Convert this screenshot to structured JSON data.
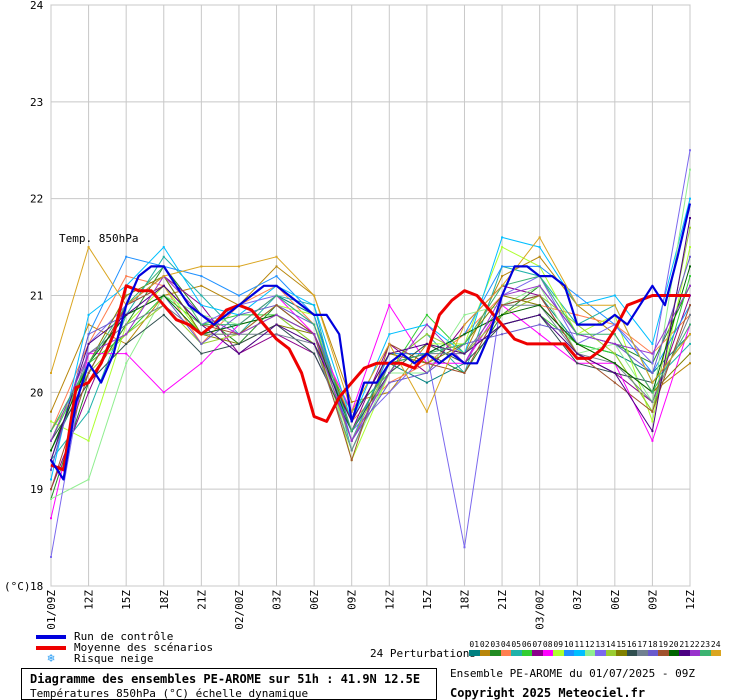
{
  "chart_data": {
    "type": "line",
    "in_chart_label": "Temp. 850hPa",
    "unit_label": "(°C)",
    "ylim": [
      18,
      24
    ],
    "y_ticks": [
      "18",
      "19",
      "20",
      "21",
      "22",
      "23",
      "24"
    ],
    "x_tick_labels": [
      "01/09Z",
      "12Z",
      "15Z",
      "18Z",
      "21Z",
      "02/00Z",
      "03Z",
      "06Z",
      "09Z",
      "12Z",
      "15Z",
      "18Z",
      "21Z",
      "03/00Z",
      "03Z",
      "06Z",
      "09Z",
      "12Z"
    ],
    "x_hours": [
      0,
      3,
      6,
      9,
      12,
      15,
      18,
      21,
      24,
      27,
      30,
      33,
      36,
      39,
      42,
      45,
      48,
      51
    ],
    "xlim": [
      0,
      51
    ],
    "grid": true,
    "control_run": {
      "name": "Run de contrôle",
      "color": "#0000dd",
      "x": [
        0,
        1,
        2,
        3,
        4,
        5,
        6,
        7,
        8,
        9,
        10,
        11,
        12,
        13,
        14,
        15,
        16,
        17,
        18,
        19,
        20,
        21,
        22,
        23,
        24,
        25,
        26,
        27,
        28,
        29,
        30,
        31,
        32,
        33,
        34,
        35,
        36,
        37,
        38,
        39,
        40,
        41,
        42,
        43,
        44,
        45,
        46,
        47,
        48,
        49,
        50,
        51
      ],
      "values": [
        19.3,
        19.1,
        19.9,
        20.3,
        20.1,
        20.4,
        20.9,
        21.2,
        21.3,
        21.3,
        21.1,
        20.9,
        20.8,
        20.7,
        20.8,
        20.9,
        21.0,
        21.1,
        21.1,
        21.0,
        20.9,
        20.8,
        20.8,
        20.6,
        19.7,
        20.1,
        20.1,
        20.3,
        20.4,
        20.3,
        20.4,
        20.3,
        20.4,
        20.3,
        20.3,
        20.6,
        21.0,
        21.3,
        21.3,
        21.2,
        21.2,
        21.1,
        20.7,
        20.7,
        20.7,
        20.8,
        20.7,
        20.9,
        21.1,
        20.9,
        21.4,
        21.95
      ]
    },
    "mean": {
      "name": "Moyenne des scénarios",
      "color": "#ee0000",
      "x": [
        0,
        1,
        2,
        3,
        4,
        5,
        6,
        7,
        8,
        9,
        10,
        11,
        12,
        13,
        14,
        15,
        16,
        17,
        18,
        19,
        20,
        21,
        22,
        23,
        24,
        25,
        26,
        27,
        28,
        29,
        30,
        31,
        32,
        33,
        34,
        35,
        36,
        37,
        38,
        39,
        40,
        41,
        42,
        43,
        44,
        45,
        46,
        47,
        48,
        49,
        50,
        51
      ],
      "values": [
        19.25,
        19.2,
        20.05,
        20.1,
        20.3,
        20.6,
        21.1,
        21.05,
        21.05,
        20.9,
        20.75,
        20.7,
        20.6,
        20.7,
        20.85,
        20.9,
        20.85,
        20.7,
        20.55,
        20.45,
        20.2,
        19.75,
        19.7,
        19.95,
        20.1,
        20.25,
        20.3,
        20.3,
        20.3,
        20.25,
        20.4,
        20.8,
        20.95,
        21.05,
        21.0,
        20.85,
        20.7,
        20.55,
        20.5,
        20.5,
        20.5,
        20.5,
        20.35,
        20.35,
        20.45,
        20.65,
        20.9,
        20.95,
        21.0,
        21.0,
        21.0,
        21.0
      ]
    },
    "snow_risk": {
      "name": "Risque neige"
    },
    "perturbations": {
      "label": "24 Perturbations",
      "members": [
        {
          "id": "01",
          "color": "#008080"
        },
        {
          "id": "02",
          "color": "#b8860b"
        },
        {
          "id": "03",
          "color": "#228b22"
        },
        {
          "id": "04",
          "color": "#ff7f50"
        },
        {
          "id": "05",
          "color": "#20b2aa"
        },
        {
          "id": "06",
          "color": "#32cd32"
        },
        {
          "id": "07",
          "color": "#8b008b"
        },
        {
          "id": "08",
          "color": "#ff00ff"
        },
        {
          "id": "09",
          "color": "#adff2f"
        },
        {
          "id": "10",
          "color": "#1e90ff"
        },
        {
          "id": "11",
          "color": "#00bfff"
        },
        {
          "id": "12",
          "color": "#90ee90"
        },
        {
          "id": "13",
          "color": "#7b68ee"
        },
        {
          "id": "14",
          "color": "#9acd32"
        },
        {
          "id": "15",
          "color": "#808000"
        },
        {
          "id": "16",
          "color": "#2f4f4f"
        },
        {
          "id": "17",
          "color": "#708090"
        },
        {
          "id": "18",
          "color": "#6a5acd"
        },
        {
          "id": "19",
          "color": "#a0522d"
        },
        {
          "id": "20",
          "color": "#006400"
        },
        {
          "id": "21",
          "color": "#4b0082"
        },
        {
          "id": "22",
          "color": "#9932cc"
        },
        {
          "id": "23",
          "color": "#3cb371"
        },
        {
          "id": "24",
          "color": "#daa520"
        }
      ],
      "x": [
        0,
        3,
        6,
        9,
        12,
        15,
        18,
        21,
        24,
        27,
        30,
        33,
        36,
        39,
        42,
        45,
        48,
        51
      ],
      "series": [
        [
          19.4,
          20.2,
          20.9,
          21.2,
          20.6,
          20.7,
          21.0,
          20.8,
          19.6,
          20.3,
          20.1,
          20.3,
          20.9,
          21.0,
          20.5,
          20.4,
          20.2,
          20.6
        ],
        [
          19.8,
          20.7,
          20.5,
          21.0,
          21.1,
          20.9,
          21.3,
          21.0,
          19.9,
          20.0,
          20.5,
          20.4,
          21.2,
          21.4,
          20.9,
          20.6,
          20.0,
          20.3
        ],
        [
          18.9,
          20.1,
          20.7,
          21.3,
          20.8,
          20.5,
          20.9,
          20.6,
          19.5,
          20.4,
          20.4,
          20.2,
          20.8,
          21.1,
          20.6,
          20.5,
          20.3,
          21.1
        ],
        [
          19.6,
          20.5,
          21.2,
          21.1,
          20.5,
          20.9,
          21.1,
          20.7,
          19.7,
          20.1,
          20.3,
          20.6,
          21.0,
          20.9,
          20.8,
          20.7,
          20.4,
          20.8
        ],
        [
          19.3,
          19.8,
          20.8,
          21.4,
          21.0,
          20.6,
          21.0,
          20.9,
          19.4,
          20.3,
          20.6,
          20.2,
          21.3,
          21.2,
          20.7,
          20.9,
          20.1,
          20.5
        ],
        [
          19.5,
          20.3,
          20.6,
          21.0,
          20.7,
          20.8,
          20.8,
          20.5,
          19.8,
          20.2,
          20.8,
          20.4,
          20.7,
          20.8,
          20.5,
          20.4,
          19.8,
          21.2
        ],
        [
          19.0,
          20.0,
          20.9,
          21.2,
          20.9,
          20.4,
          20.6,
          20.4,
          19.6,
          20.5,
          20.2,
          20.7,
          21.1,
          21.0,
          20.4,
          20.2,
          19.9,
          21.0
        ],
        [
          18.7,
          20.4,
          20.4,
          20.0,
          20.3,
          20.7,
          21.0,
          20.6,
          19.8,
          20.9,
          20.3,
          20.3,
          20.9,
          20.6,
          20.3,
          20.3,
          19.5,
          20.7
        ],
        [
          19.7,
          19.5,
          20.7,
          21.1,
          20.6,
          20.6,
          20.9,
          20.8,
          19.3,
          20.2,
          20.5,
          20.5,
          21.5,
          21.3,
          20.6,
          20.8,
          19.7,
          21.5
        ],
        [
          19.2,
          20.6,
          21.4,
          21.3,
          21.2,
          21.0,
          21.2,
          20.8,
          19.5,
          20.4,
          20.4,
          20.6,
          21.3,
          21.3,
          21.0,
          20.7,
          20.2,
          20.9
        ],
        [
          19.1,
          20.8,
          21.1,
          21.5,
          20.9,
          20.8,
          21.1,
          20.9,
          19.7,
          20.6,
          20.7,
          20.4,
          21.6,
          21.5,
          20.9,
          21.0,
          20.5,
          22.0
        ],
        [
          18.9,
          19.1,
          20.3,
          21.0,
          20.8,
          20.7,
          20.8,
          20.6,
          19.4,
          20.2,
          20.2,
          20.8,
          20.9,
          21.1,
          20.4,
          20.5,
          19.9,
          22.3
        ],
        [
          18.3,
          20.5,
          20.9,
          21.1,
          20.7,
          20.9,
          21.0,
          20.7,
          19.6,
          20.0,
          20.4,
          18.4,
          21.0,
          21.2,
          20.5,
          20.7,
          20.3,
          22.5
        ],
        [
          19.6,
          20.2,
          20.6,
          20.9,
          20.5,
          20.6,
          20.8,
          20.5,
          19.5,
          20.3,
          20.6,
          20.4,
          20.8,
          21.0,
          20.7,
          20.4,
          19.8,
          21.7
        ],
        [
          19.4,
          20.3,
          21.0,
          21.2,
          20.6,
          20.5,
          20.7,
          20.6,
          19.7,
          20.4,
          20.3,
          20.5,
          21.0,
          20.9,
          20.5,
          20.3,
          20.0,
          20.4
        ],
        [
          19.5,
          20.1,
          20.5,
          20.8,
          20.4,
          20.5,
          20.7,
          20.4,
          19.6,
          20.2,
          20.5,
          20.3,
          20.7,
          20.8,
          20.3,
          20.2,
          20.1,
          20.6
        ],
        [
          19.3,
          20.4,
          20.7,
          20.9,
          20.6,
          20.6,
          20.6,
          20.5,
          19.4,
          20.3,
          20.4,
          20.4,
          20.9,
          20.9,
          20.4,
          20.3,
          19.9,
          20.8
        ],
        [
          19.2,
          20.6,
          20.8,
          21.0,
          20.5,
          20.8,
          20.9,
          20.7,
          19.5,
          20.1,
          20.2,
          20.5,
          20.6,
          20.7,
          20.6,
          20.5,
          20.2,
          21.4
        ],
        [
          19.0,
          20.2,
          20.9,
          21.1,
          20.7,
          20.6,
          20.9,
          20.6,
          19.3,
          20.5,
          20.3,
          20.2,
          20.9,
          21.0,
          20.4,
          20.1,
          19.8,
          20.9
        ],
        [
          19.4,
          20.3,
          20.8,
          21.0,
          20.6,
          20.7,
          20.8,
          20.6,
          19.6,
          20.3,
          20.4,
          20.6,
          20.8,
          20.9,
          20.5,
          20.3,
          20.0,
          21.3
        ],
        [
          19.3,
          20.5,
          20.8,
          21.1,
          20.7,
          20.4,
          20.7,
          20.5,
          19.7,
          20.4,
          20.5,
          20.4,
          20.7,
          20.8,
          20.4,
          20.2,
          19.6,
          21.8
        ],
        [
          19.5,
          20.4,
          20.6,
          21.2,
          20.8,
          20.6,
          20.8,
          20.6,
          19.5,
          20.2,
          20.7,
          20.3,
          21.0,
          21.1,
          20.6,
          20.5,
          20.4,
          21.1
        ],
        [
          19.6,
          20.3,
          20.9,
          21.3,
          20.7,
          20.7,
          21.0,
          20.7,
          19.6,
          20.3,
          20.4,
          20.5,
          21.1,
          21.2,
          20.6,
          20.6,
          20.0,
          20.7
        ],
        [
          20.2,
          21.5,
          20.9,
          21.2,
          21.3,
          21.3,
          21.4,
          21.0,
          19.8,
          20.5,
          19.8,
          20.7,
          21.1,
          21.6,
          20.9,
          20.9,
          20.1,
          20.6
        ]
      ]
    }
  },
  "legend": {
    "control": "Run de contrôle",
    "mean": "Moyenne des scénarios",
    "snow": "Risque neige",
    "snow_glyph": "❄"
  },
  "footer": {
    "title": "Diagramme des ensembles PE-AROME sur 51h : 41.9N 12.5E",
    "subtitle": "Températures 850hPa (°C) échelle dynamique",
    "ensemble": "Ensemble PE-AROME du 01/07/2025 - 09Z",
    "copyright": "Copyright 2025 Meteociel.fr"
  }
}
